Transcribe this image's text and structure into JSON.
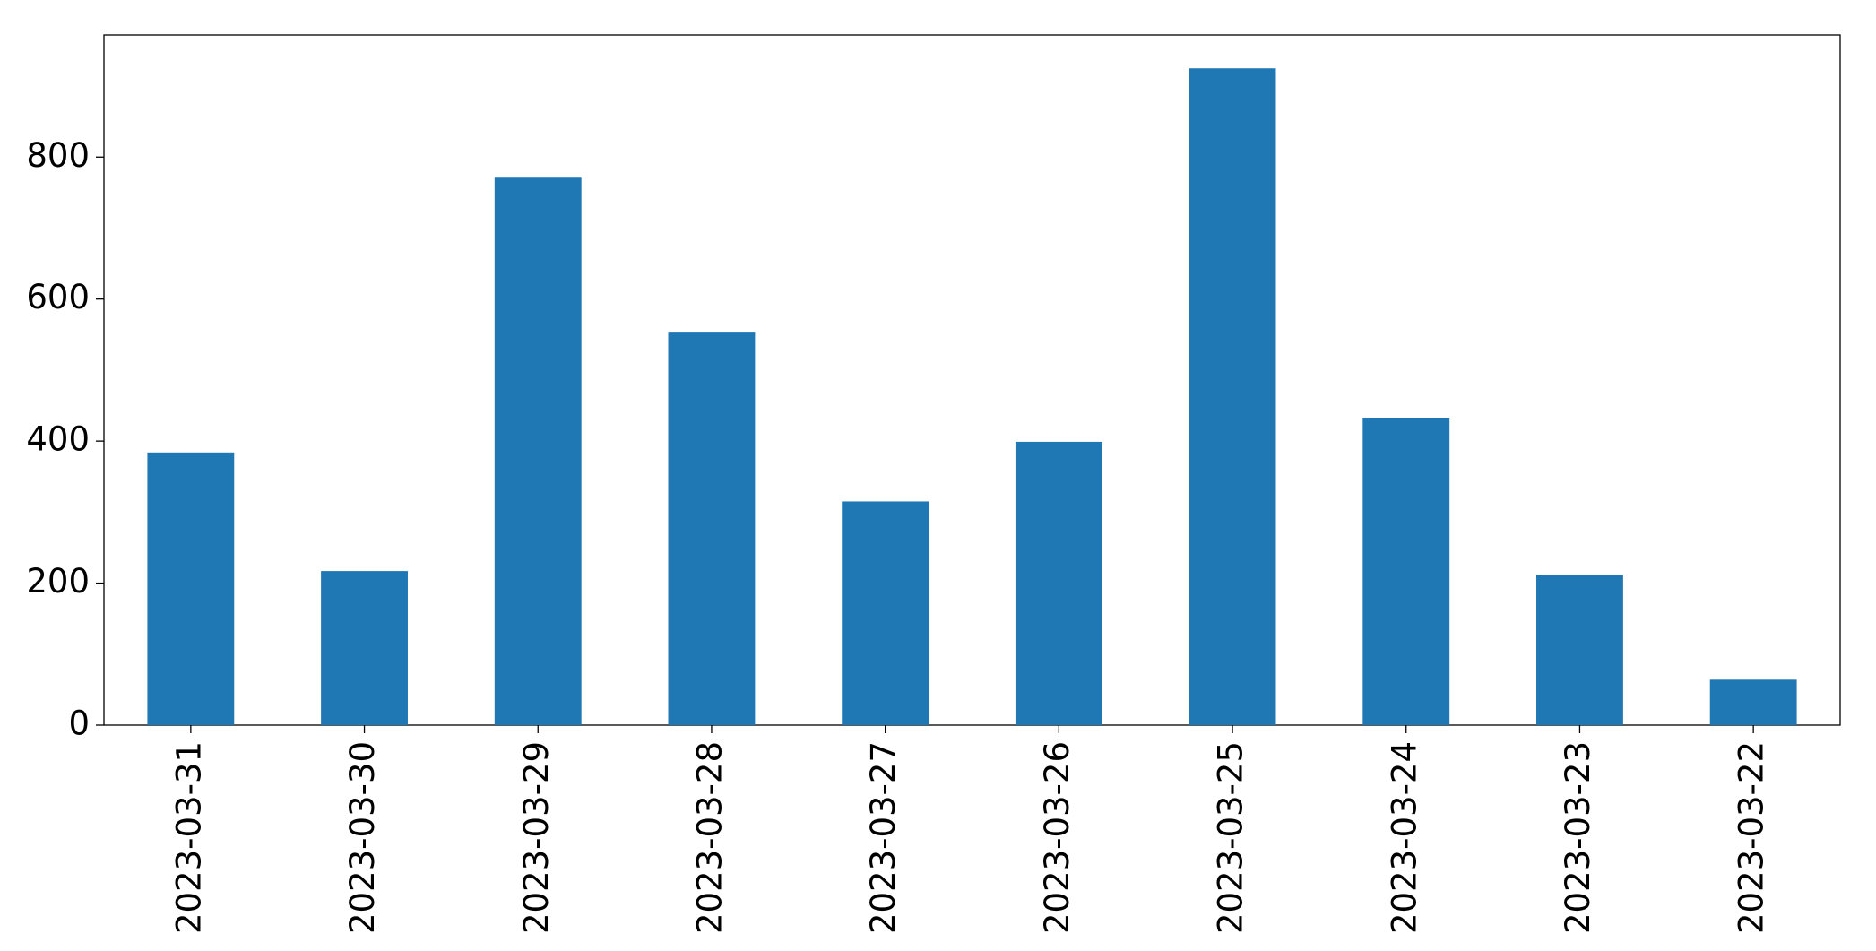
{
  "chart_data": {
    "type": "bar",
    "categories": [
      "2023-03-31",
      "2023-03-30",
      "2023-03-29",
      "2023-03-28",
      "2023-03-27",
      "2023-03-26",
      "2023-03-25",
      "2023-03-24",
      "2023-03-23",
      "2023-03-22"
    ],
    "values": [
      384,
      217,
      771,
      554,
      315,
      399,
      925,
      433,
      212,
      64
    ],
    "color": "#1f77b4",
    "ylim": [
      0,
      972
    ],
    "yticks": [
      0,
      200,
      400,
      600,
      800
    ],
    "grid": false
  }
}
